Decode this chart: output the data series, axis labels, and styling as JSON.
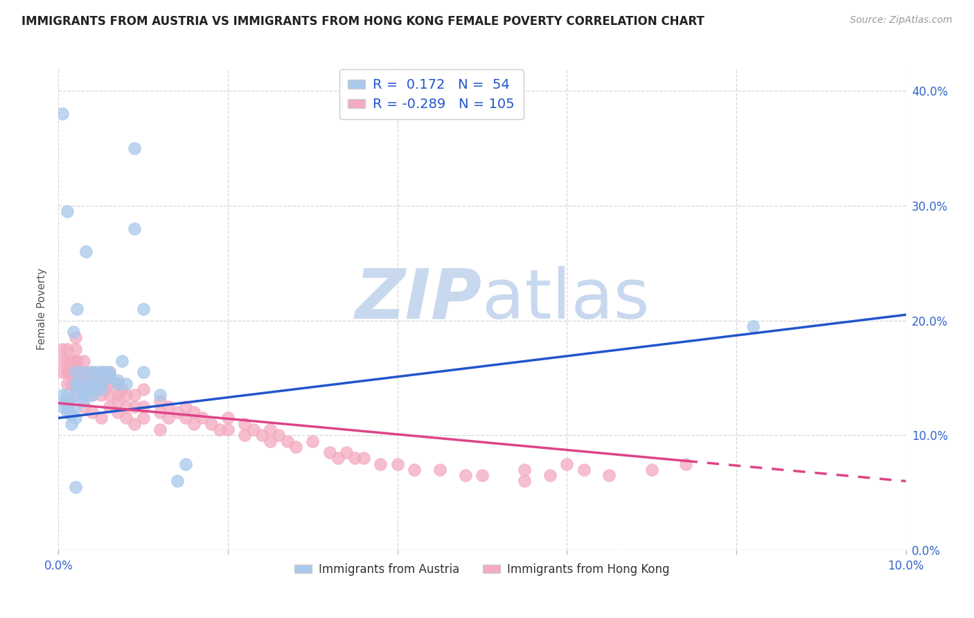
{
  "title": "IMMIGRANTS FROM AUSTRIA VS IMMIGRANTS FROM HONG KONG FEMALE POVERTY CORRELATION CHART",
  "source": "Source: ZipAtlas.com",
  "ylabel": "Female Poverty",
  "xlim": [
    0.0,
    0.1
  ],
  "ylim": [
    0.0,
    0.42
  ],
  "xticks": [
    0.0,
    0.02,
    0.04,
    0.06,
    0.08,
    0.1
  ],
  "yticks": [
    0.0,
    0.1,
    0.2,
    0.3,
    0.4
  ],
  "series1_label": "Immigrants from Austria",
  "series1_color": "#A8C8EC",
  "series1_R": "0.172",
  "series1_N": "54",
  "series2_label": "Immigrants from Hong Kong",
  "series2_color": "#F4AABF",
  "series2_R": "-0.289",
  "series2_N": "105",
  "watermark_zip": "ZIP",
  "watermark_atlas": "atlas",
  "watermark_color": "#C8D8EE",
  "line1_color": "#2255CC",
  "line2_color": "#DD4488",
  "background_color": "#FFFFFF",
  "line1_x0": 0.0,
  "line1_y0": 0.115,
  "line1_x1": 0.1,
  "line1_y1": 0.205,
  "line2_x0": 0.0,
  "line2_y0": 0.128,
  "line2_x1": 0.1,
  "line2_y1": 0.06,
  "line2_solid_end": 0.074,
  "austria_x": [
    0.0005,
    0.0005,
    0.0008,
    0.001,
    0.001,
    0.001,
    0.0012,
    0.0013,
    0.0015,
    0.0015,
    0.0018,
    0.002,
    0.002,
    0.002,
    0.002,
    0.002,
    0.0022,
    0.0025,
    0.0025,
    0.003,
    0.003,
    0.003,
    0.003,
    0.003,
    0.0032,
    0.0035,
    0.0038,
    0.004,
    0.004,
    0.004,
    0.0042,
    0.0045,
    0.005,
    0.005,
    0.005,
    0.0055,
    0.006,
    0.006,
    0.006,
    0.007,
    0.007,
    0.0075,
    0.008,
    0.009,
    0.009,
    0.01,
    0.01,
    0.012,
    0.014,
    0.015,
    0.0005,
    0.082,
    0.001,
    0.002
  ],
  "austria_y": [
    0.135,
    0.125,
    0.13,
    0.135,
    0.125,
    0.12,
    0.13,
    0.12,
    0.118,
    0.11,
    0.19,
    0.155,
    0.145,
    0.135,
    0.125,
    0.115,
    0.21,
    0.145,
    0.14,
    0.155,
    0.14,
    0.135,
    0.135,
    0.13,
    0.26,
    0.145,
    0.155,
    0.145,
    0.14,
    0.135,
    0.145,
    0.155,
    0.155,
    0.145,
    0.14,
    0.155,
    0.155,
    0.15,
    0.15,
    0.148,
    0.145,
    0.165,
    0.145,
    0.35,
    0.28,
    0.21,
    0.155,
    0.135,
    0.06,
    0.075,
    0.38,
    0.195,
    0.295,
    0.055
  ],
  "hk_x": [
    0.0005,
    0.0005,
    0.0005,
    0.001,
    0.001,
    0.001,
    0.001,
    0.001,
    0.0012,
    0.0015,
    0.0015,
    0.0015,
    0.0018,
    0.002,
    0.002,
    0.002,
    0.002,
    0.002,
    0.002,
    0.0022,
    0.0025,
    0.0025,
    0.003,
    0.003,
    0.003,
    0.003,
    0.003,
    0.003,
    0.0032,
    0.0035,
    0.0038,
    0.004,
    0.004,
    0.004,
    0.004,
    0.0042,
    0.0045,
    0.005,
    0.005,
    0.005,
    0.005,
    0.005,
    0.0055,
    0.006,
    0.006,
    0.006,
    0.006,
    0.007,
    0.007,
    0.007,
    0.007,
    0.0075,
    0.008,
    0.008,
    0.008,
    0.009,
    0.009,
    0.009,
    0.01,
    0.01,
    0.01,
    0.012,
    0.012,
    0.012,
    0.013,
    0.013,
    0.014,
    0.015,
    0.015,
    0.016,
    0.016,
    0.017,
    0.018,
    0.019,
    0.02,
    0.02,
    0.022,
    0.022,
    0.023,
    0.024,
    0.025,
    0.025,
    0.026,
    0.027,
    0.028,
    0.03,
    0.032,
    0.033,
    0.034,
    0.035,
    0.036,
    0.038,
    0.04,
    0.042,
    0.045,
    0.048,
    0.05,
    0.055,
    0.055,
    0.058,
    0.06,
    0.062,
    0.065,
    0.07,
    0.074
  ],
  "hk_y": [
    0.175,
    0.165,
    0.155,
    0.175,
    0.165,
    0.155,
    0.145,
    0.13,
    0.155,
    0.165,
    0.155,
    0.145,
    0.155,
    0.185,
    0.175,
    0.165,
    0.155,
    0.145,
    0.135,
    0.165,
    0.155,
    0.14,
    0.165,
    0.155,
    0.15,
    0.145,
    0.135,
    0.125,
    0.155,
    0.145,
    0.145,
    0.155,
    0.145,
    0.135,
    0.12,
    0.14,
    0.145,
    0.155,
    0.145,
    0.14,
    0.135,
    0.115,
    0.14,
    0.155,
    0.145,
    0.135,
    0.125,
    0.145,
    0.135,
    0.13,
    0.12,
    0.14,
    0.135,
    0.125,
    0.115,
    0.135,
    0.125,
    0.11,
    0.14,
    0.125,
    0.115,
    0.13,
    0.12,
    0.105,
    0.125,
    0.115,
    0.12,
    0.125,
    0.115,
    0.12,
    0.11,
    0.115,
    0.11,
    0.105,
    0.115,
    0.105,
    0.11,
    0.1,
    0.105,
    0.1,
    0.105,
    0.095,
    0.1,
    0.095,
    0.09,
    0.095,
    0.085,
    0.08,
    0.085,
    0.08,
    0.08,
    0.075,
    0.075,
    0.07,
    0.07,
    0.065,
    0.065,
    0.07,
    0.06,
    0.065,
    0.075,
    0.07,
    0.065,
    0.07,
    0.075
  ]
}
